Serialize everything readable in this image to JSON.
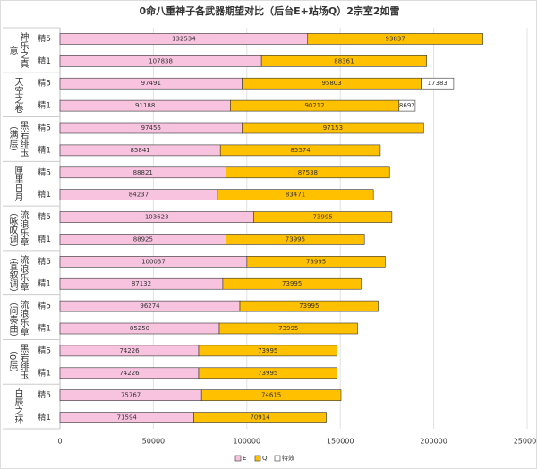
{
  "chart_data": {
    "type": "bar",
    "orientation": "horizontal",
    "stacked": true,
    "title": "0命八重神子各武器期望对比（后台E+站场Q）2宗室2如雷",
    "groups": [
      "神乐之真意",
      "天空之卷",
      "黑岩绯玉（满层）",
      "匣里日月",
      "流浪乐章（咏叹调）",
      "流浪乐章（宣叙调）",
      "流浪乐章（间奏曲）",
      "黑岩绯玉（0层）",
      "白辰之环"
    ],
    "categories": [
      "精5",
      "精1",
      "精5",
      "精1",
      "精5",
      "精1",
      "精5",
      "精1",
      "精5",
      "精1",
      "精5",
      "精1",
      "精5",
      "精1",
      "精5",
      "精1",
      "精5",
      "精1"
    ],
    "series": [
      {
        "name": "E",
        "color": "#f7c3df",
        "values": [
          132534,
          107838,
          97491,
          91188,
          97456,
          85841,
          88821,
          84237,
          103623,
          88925,
          100037,
          87132,
          96274,
          85250,
          74226,
          74226,
          75767,
          71594
        ]
      },
      {
        "name": "Q",
        "color": "#ffc000",
        "values": [
          93837,
          88361,
          95803,
          90212,
          97153,
          85574,
          87538,
          83471,
          73995,
          73995,
          73995,
          73995,
          73995,
          73995,
          73995,
          73995,
          74615,
          70914
        ]
      },
      {
        "name": "特效",
        "color": "#ffffff",
        "values": [
          null,
          null,
          17383,
          8692,
          null,
          null,
          null,
          null,
          null,
          null,
          null,
          null,
          null,
          null,
          null,
          null,
          null,
          null
        ]
      }
    ],
    "xlim": [
      0,
      250000
    ],
    "xticks": [
      0,
      50000,
      100000,
      150000,
      200000,
      250000
    ],
    "grid": true,
    "legend": "bottom"
  }
}
